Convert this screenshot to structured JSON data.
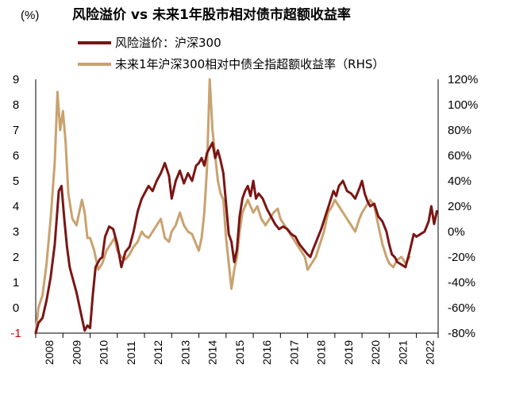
{
  "chart_data": {
    "type": "line",
    "title": "风险溢价 vs 未来1年股市相对债市超额收益率",
    "left_unit": "(%)",
    "x_range": [
      2008.0,
      2022.8
    ],
    "x_ticks": [
      "2008",
      "2009",
      "2010",
      "2011",
      "2012",
      "2013",
      "2014",
      "2015",
      "2016",
      "2017",
      "2018",
      "2019",
      "2020",
      "2021",
      "2022"
    ],
    "y_left": {
      "range": [
        -1,
        9
      ],
      "ticks": [
        "-1",
        "0",
        "1",
        "2",
        "3",
        "4",
        "5",
        "6",
        "7",
        "8",
        "9"
      ]
    },
    "y_right": {
      "range": [
        -80,
        120
      ],
      "ticks": [
        "-80%",
        "-60%",
        "-40%",
        "-20%",
        "0%",
        "20%",
        "40%",
        "60%",
        "80%",
        "100%",
        "120%"
      ]
    },
    "grid": false,
    "legend_position": "top-left",
    "series": [
      {
        "name": "风险溢价：沪深300",
        "axis": "left",
        "color": "#7b1515",
        "x": [
          2008.0,
          2008.1,
          2008.25,
          2008.4,
          2008.55,
          2008.7,
          2008.85,
          2008.95,
          2009.05,
          2009.15,
          2009.25,
          2009.35,
          2009.5,
          2009.6,
          2009.7,
          2009.8,
          2009.9,
          2010.0,
          2010.1,
          2010.2,
          2010.35,
          2010.45,
          2010.55,
          2010.7,
          2010.85,
          2011.0,
          2011.15,
          2011.3,
          2011.45,
          2011.6,
          2011.75,
          2011.9,
          2012.0,
          2012.15,
          2012.3,
          2012.45,
          2012.6,
          2012.75,
          2012.9,
          2013.0,
          2013.15,
          2013.3,
          2013.45,
          2013.6,
          2013.75,
          2013.9,
          2014.0,
          2014.1,
          2014.2,
          2014.3,
          2014.4,
          2014.5,
          2014.6,
          2014.7,
          2014.8,
          2014.9,
          2015.0,
          2015.1,
          2015.2,
          2015.3,
          2015.4,
          2015.5,
          2015.6,
          2015.7,
          2015.8,
          2015.9,
          2016.0,
          2016.1,
          2016.2,
          2016.35,
          2016.5,
          2016.65,
          2016.8,
          2016.95,
          2017.1,
          2017.25,
          2017.4,
          2017.55,
          2017.7,
          2017.85,
          2018.0,
          2018.1,
          2018.2,
          2018.35,
          2018.5,
          2018.65,
          2018.8,
          2018.95,
          2019.05,
          2019.15,
          2019.3,
          2019.45,
          2019.6,
          2019.75,
          2019.9,
          2020.0,
          2020.1,
          2020.2,
          2020.3,
          2020.45,
          2020.6,
          2020.75,
          2020.9,
          2021.0,
          2021.1,
          2021.2,
          2021.3,
          2021.45,
          2021.6,
          2021.75,
          2021.9,
          2022.0,
          2022.15,
          2022.3,
          2022.45,
          2022.55,
          2022.65,
          2022.75
        ],
        "values": [
          -1.0,
          -0.6,
          -0.4,
          0.3,
          1.2,
          2.5,
          4.6,
          4.8,
          3.5,
          2.4,
          1.6,
          1.2,
          0.6,
          0.1,
          -0.4,
          -0.9,
          -0.7,
          -0.8,
          0.5,
          1.6,
          1.9,
          2.0,
          2.8,
          3.2,
          3.1,
          2.5,
          1.6,
          2.2,
          2.4,
          3.0,
          3.8,
          4.3,
          4.5,
          4.8,
          4.6,
          5.0,
          5.3,
          5.7,
          5.2,
          4.3,
          5.0,
          5.4,
          4.9,
          5.3,
          5.0,
          5.6,
          5.7,
          5.9,
          5.6,
          6.1,
          6.3,
          6.5,
          5.9,
          6.2,
          5.8,
          5.3,
          4.1,
          2.9,
          2.6,
          1.8,
          2.3,
          3.6,
          4.3,
          4.6,
          4.8,
          4.4,
          5.0,
          4.3,
          4.5,
          4.3,
          3.9,
          3.6,
          3.3,
          3.1,
          3.2,
          3.1,
          2.9,
          2.8,
          2.5,
          2.3,
          2.1,
          2.0,
          2.3,
          2.7,
          3.1,
          3.6,
          4.1,
          4.6,
          4.4,
          4.8,
          5.0,
          4.6,
          4.5,
          4.3,
          4.7,
          5.0,
          4.5,
          4.2,
          4.0,
          4.1,
          3.6,
          3.4,
          3.0,
          2.5,
          2.1,
          2.0,
          1.8,
          1.7,
          1.6,
          2.2,
          2.9,
          2.8,
          2.9,
          3.0,
          3.4,
          4.0,
          3.3,
          3.8
        ]
      },
      {
        "name": "未来1年沪深300相对中债全指超额收益率（RHS）",
        "axis": "right",
        "color": "#c9a26f",
        "x": [
          2008.0,
          2008.1,
          2008.25,
          2008.4,
          2008.55,
          2008.7,
          2008.8,
          2008.9,
          2009.0,
          2009.1,
          2009.2,
          2009.35,
          2009.5,
          2009.6,
          2009.7,
          2009.8,
          2009.9,
          2010.0,
          2010.15,
          2010.3,
          2010.45,
          2010.6,
          2010.75,
          2010.9,
          2011.0,
          2011.15,
          2011.3,
          2011.45,
          2011.6,
          2011.75,
          2011.9,
          2012.0,
          2012.15,
          2012.3,
          2012.45,
          2012.6,
          2012.75,
          2012.9,
          2013.0,
          2013.15,
          2013.3,
          2013.45,
          2013.6,
          2013.75,
          2013.9,
          2014.0,
          2014.1,
          2014.2,
          2014.3,
          2014.4,
          2014.5,
          2014.6,
          2014.7,
          2014.8,
          2014.9,
          2015.0,
          2015.1,
          2015.2,
          2015.3,
          2015.4,
          2015.5,
          2015.6,
          2015.7,
          2015.8,
          2015.9,
          2016.0,
          2016.15,
          2016.3,
          2016.45,
          2016.6,
          2016.75,
          2016.9,
          2017.0,
          2017.15,
          2017.3,
          2017.45,
          2017.6,
          2017.75,
          2017.9,
          2018.0,
          2018.15,
          2018.3,
          2018.45,
          2018.6,
          2018.75,
          2018.9,
          2019.0,
          2019.15,
          2019.3,
          2019.45,
          2019.6,
          2019.75,
          2019.9,
          2020.0,
          2020.15,
          2020.3,
          2020.45,
          2020.6,
          2020.75,
          2020.9,
          2021.0,
          2021.15,
          2021.3,
          2021.45,
          2021.6,
          2021.75
        ],
        "values": [
          -80,
          -60,
          -50,
          -25,
          10,
          55,
          110,
          80,
          95,
          70,
          30,
          10,
          5,
          15,
          25,
          15,
          -5,
          -5,
          -15,
          -30,
          -25,
          -15,
          -10,
          -5,
          -15,
          -20,
          -22,
          -18,
          -12,
          -8,
          0,
          -3,
          -5,
          0,
          5,
          10,
          -5,
          -8,
          0,
          5,
          15,
          5,
          0,
          -2,
          -10,
          -15,
          -5,
          15,
          50,
          120,
          80,
          60,
          40,
          30,
          25,
          -5,
          -25,
          -45,
          -30,
          -20,
          0,
          15,
          20,
          25,
          20,
          15,
          20,
          10,
          5,
          10,
          15,
          18,
          10,
          5,
          0,
          -5,
          -10,
          -15,
          -20,
          -30,
          -25,
          -20,
          -10,
          0,
          15,
          20,
          25,
          20,
          15,
          10,
          5,
          0,
          10,
          15,
          20,
          25,
          20,
          5,
          -10,
          -20,
          -25,
          -28,
          -22,
          -20,
          -25,
          -20
        ]
      }
    ]
  }
}
